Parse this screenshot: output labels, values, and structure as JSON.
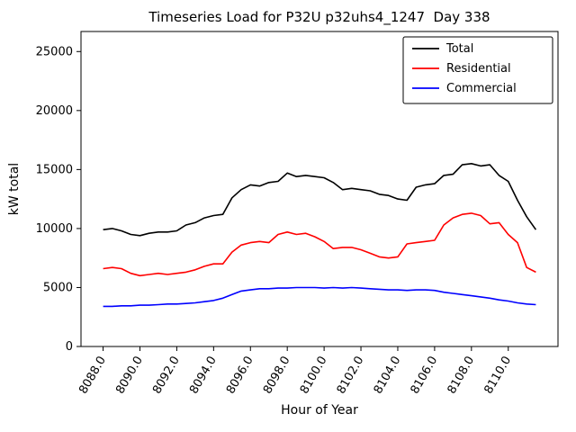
{
  "figure": {
    "title": "Timeseries Load for P32U p32uhs4_1247  Day 338",
    "xlabel": "Hour of Year",
    "ylabel": "kW total"
  },
  "chart_data": {
    "type": "line",
    "title": "Timeseries Load for P32U p32uhs4_1247  Day 338",
    "xlabel": "Hour of Year",
    "ylabel": "kW total",
    "grid": false,
    "legend_position": "upper right",
    "xlim": [
      8086.8,
      8112.7
    ],
    "ylim": [
      0,
      26700
    ],
    "y_ticks": [
      0,
      5000,
      10000,
      15000,
      20000,
      25000
    ],
    "x_ticks": [
      8088,
      8090,
      8092,
      8094,
      8096,
      8098,
      8100,
      8102,
      8104,
      8106,
      8108,
      8110
    ],
    "x_tick_labels": [
      "8088.0",
      "8090.0",
      "8092.0",
      "8094.0",
      "8096.0",
      "8098.0",
      "8100.0",
      "8102.0",
      "8104.0",
      "8106.0",
      "8108.0",
      "8110.0"
    ],
    "x": [
      8088.0,
      8088.5,
      8089.0,
      8089.5,
      8090.0,
      8090.5,
      8091.0,
      8091.5,
      8092.0,
      8092.5,
      8093.0,
      8093.5,
      8094.0,
      8094.5,
      8095.0,
      8095.5,
      8096.0,
      8096.5,
      8097.0,
      8097.5,
      8098.0,
      8098.5,
      8099.0,
      8099.5,
      8100.0,
      8100.5,
      8101.0,
      8101.5,
      8102.0,
      8102.5,
      8103.0,
      8103.5,
      8104.0,
      8104.5,
      8105.0,
      8105.5,
      8106.0,
      8106.5,
      8107.0,
      8107.5,
      8108.0,
      8108.5,
      8109.0,
      8109.5,
      8110.0,
      8110.5,
      8111.0,
      8111.5
    ],
    "series": [
      {
        "name": "Total",
        "color": "#000000",
        "values": [
          9900,
          10000,
          9800,
          9500,
          9400,
          9600,
          9700,
          9700,
          9800,
          10300,
          10500,
          10900,
          11100,
          11200,
          12600,
          13300,
          13700,
          13600,
          13900,
          14000,
          14700,
          14400,
          14500,
          14400,
          14300,
          13900,
          13300,
          13400,
          13300,
          13200,
          12900,
          12800,
          12500,
          12400,
          13500,
          13700,
          13800,
          14500,
          14600,
          15400,
          15500,
          15300,
          15400,
          14500,
          14000,
          12400,
          11000,
          9900
        ]
      },
      {
        "name": "Residential",
        "color": "#ff0000",
        "values": [
          6600,
          6700,
          6600,
          6200,
          6000,
          6100,
          6200,
          6100,
          6200,
          6300,
          6500,
          6800,
          7000,
          7000,
          8000,
          8600,
          8800,
          8900,
          8800,
          9500,
          9700,
          9500,
          9600,
          9300,
          8900,
          8300,
          8400,
          8400,
          8200,
          7900,
          7600,
          7500,
          7600,
          8700,
          8800,
          8900,
          9000,
          10300,
          10900,
          11200,
          11300,
          11100,
          10400,
          10500,
          9500,
          8800,
          6700,
          6300
        ]
      },
      {
        "name": "Commercial",
        "color": "#0000ff",
        "values": [
          3400,
          3400,
          3450,
          3450,
          3500,
          3500,
          3550,
          3600,
          3600,
          3650,
          3700,
          3800,
          3900,
          4100,
          4400,
          4700,
          4800,
          4900,
          4900,
          4950,
          4950,
          5000,
          5000,
          5000,
          4950,
          5000,
          4950,
          5000,
          4950,
          4900,
          4850,
          4800,
          4800,
          4750,
          4800,
          4800,
          4750,
          4600,
          4500,
          4400,
          4300,
          4200,
          4100,
          3950,
          3850,
          3700,
          3600,
          3550
        ]
      }
    ]
  }
}
